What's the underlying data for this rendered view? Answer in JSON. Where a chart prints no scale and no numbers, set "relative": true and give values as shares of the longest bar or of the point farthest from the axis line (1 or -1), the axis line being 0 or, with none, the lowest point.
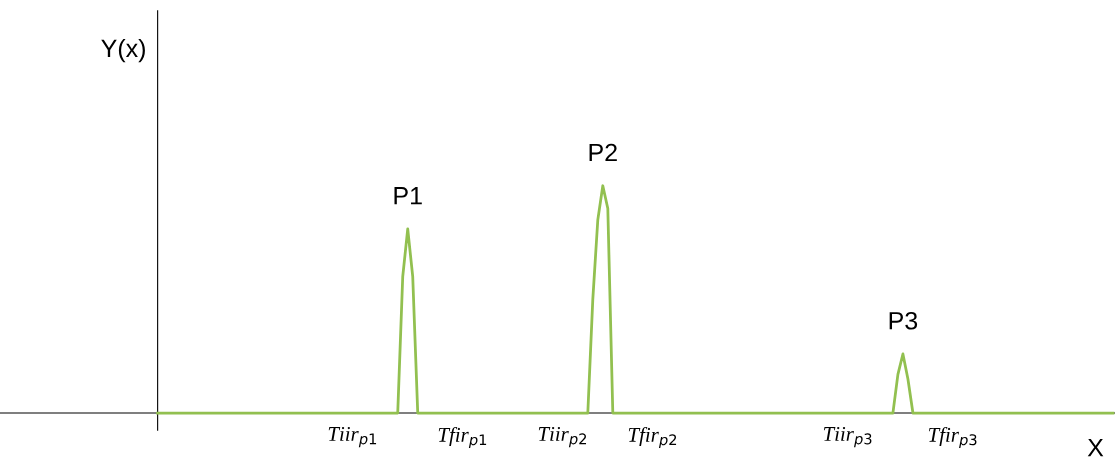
{
  "chart_data": {
    "type": "line",
    "relative": true,
    "xlabel": "X",
    "ylabel": "Y(x)",
    "categories": [
      null,
      null,
      null,
      null,
      null,
      null,
      null,
      null,
      null,
      null,
      null,
      null,
      null,
      null,
      null,
      null,
      null,
      null,
      null,
      null,
      null,
      null,
      null,
      null,
      null,
      null,
      null,
      null,
      null,
      null,
      null,
      null,
      null,
      null,
      null,
      null,
      null,
      null,
      null,
      "Tiir$_{p1}$",
      null,
      null,
      null,
      null,
      null,
      null,
      null,
      null,
      null,
      null,
      null,
      null,
      null,
      null,
      null,
      null,
      null,
      null,
      null,
      null,
      null,
      "Tfir$_{p1}$",
      null,
      null,
      null,
      null,
      null,
      null,
      null,
      null,
      null,
      null,
      null,
      null,
      null,
      null,
      null,
      null,
      null,
      null,
      null,
      "Tiir$_{p2}$",
      null,
      null,
      null,
      null,
      null,
      null,
      null,
      null,
      null,
      null,
      null,
      null,
      null,
      null,
      null,
      null,
      null,
      "Tfir$_{p2}$",
      null,
      null,
      null,
      null,
      null,
      null,
      null,
      null,
      null,
      null,
      null,
      null,
      null,
      null,
      null,
      null,
      null,
      null,
      null,
      null,
      null,
      null,
      null,
      null,
      null,
      null,
      null,
      null,
      null,
      null,
      null,
      null,
      null,
      null,
      null,
      null,
      null,
      null,
      "Tiir$_{p3}$",
      null,
      null,
      null,
      null,
      null,
      null,
      null,
      null,
      null,
      null,
      null,
      null,
      null,
      null,
      null,
      null,
      null,
      null,
      null,
      null,
      "Tfir$_{p3}$",
      null,
      null,
      null,
      null,
      null,
      null,
      null,
      null,
      null,
      null,
      null,
      null,
      null,
      null,
      null,
      null,
      null,
      null,
      null,
      null,
      null,
      null,
      null,
      null,
      null,
      null,
      null,
      null,
      null,
      null,
      null,
      null
    ],
    "series": [
      {
        "color": "#92c050",
        "values": [
          0,
          0,
          0,
          0,
          0,
          0,
          0,
          0,
          0,
          0,
          0,
          0,
          0,
          0,
          0,
          0,
          0,
          0,
          0,
          0,
          0,
          0,
          0,
          0,
          0,
          0,
          0,
          0,
          0,
          0,
          0,
          0,
          0,
          0,
          0,
          0,
          0,
          0,
          0,
          0,
          0,
          0,
          0,
          0,
          0,
          0,
          0,
          0,
          0,
          0.6,
          0.81,
          0.6,
          0,
          0,
          0,
          0,
          0,
          0,
          0,
          0,
          0,
          0,
          0,
          0,
          0,
          0,
          0,
          0,
          0,
          0,
          0,
          0,
          0,
          0,
          0,
          0,
          0,
          0,
          0,
          0,
          0,
          0,
          0,
          0,
          0,
          0,
          0,
          0.5,
          0.85,
          1,
          0.9,
          0,
          0,
          0,
          0,
          0,
          0,
          0,
          0,
          0,
          0,
          0,
          0,
          0,
          0,
          0,
          0,
          0,
          0,
          0,
          0,
          0,
          0,
          0,
          0,
          0,
          0,
          0,
          0,
          0,
          0,
          0,
          0,
          0,
          0,
          0,
          0,
          0,
          0,
          0,
          0,
          0,
          0,
          0,
          0,
          0,
          0,
          0,
          0,
          0,
          0,
          0,
          0,
          0,
          0,
          0,
          0,
          0,
          0.17,
          0.26,
          0.15,
          0,
          0,
          0,
          0,
          0,
          0,
          0,
          0,
          0,
          0,
          0,
          0,
          0,
          0,
          0,
          0,
          0,
          0,
          0,
          0,
          0,
          0,
          0,
          0,
          0,
          0,
          0,
          0,
          0,
          0,
          0,
          0,
          0,
          0,
          0,
          0,
          0,
          0,
          0,
          0,
          0
        ]
      }
    ],
    "annotations": [
      "P1",
      "P2",
      "P3"
    ],
    "marker": "none",
    "line_style": "solid"
  }
}
